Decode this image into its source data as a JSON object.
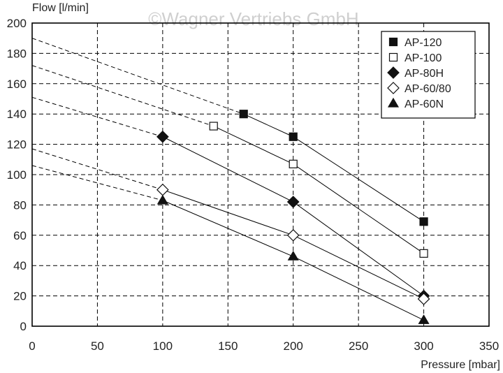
{
  "watermark": "©Wagner Vertriebs GmbH",
  "chart_data": {
    "type": "line",
    "xlabel": "Pressure [mbar]",
    "ylabel": "Flow [l/min]",
    "xlim": [
      0,
      350
    ],
    "ylim": [
      0,
      200
    ],
    "xticks": [
      0,
      50,
      100,
      150,
      200,
      250,
      300,
      350
    ],
    "yticks": [
      0,
      20,
      40,
      60,
      80,
      100,
      120,
      140,
      160,
      180,
      200
    ],
    "grid": true,
    "legend": "top-right",
    "series": [
      {
        "name": "AP-120",
        "marker": "square-filled",
        "x": [
          162,
          200,
          300
        ],
        "y": [
          140,
          125,
          69
        ],
        "extrapolated_from": [
          0,
          190
        ]
      },
      {
        "name": "AP-100",
        "marker": "square-open",
        "x": [
          139,
          200,
          300
        ],
        "y": [
          132,
          107,
          48
        ],
        "extrapolated_from": [
          0,
          172
        ]
      },
      {
        "name": "AP-80H",
        "marker": "diamond-filled",
        "x": [
          100,
          200,
          300
        ],
        "y": [
          125,
          82,
          20
        ],
        "extrapolated_from": [
          0,
          151
        ]
      },
      {
        "name": "AP-60/80",
        "marker": "diamond-open",
        "x": [
          100,
          200,
          300
        ],
        "y": [
          90,
          60,
          18
        ],
        "extrapolated_from": [
          0,
          117
        ]
      },
      {
        "name": "AP-60N",
        "marker": "triangle-filled",
        "x": [
          100,
          200,
          300
        ],
        "y": [
          83,
          46,
          4
        ],
        "extrapolated_from": [
          0,
          106
        ]
      }
    ]
  }
}
